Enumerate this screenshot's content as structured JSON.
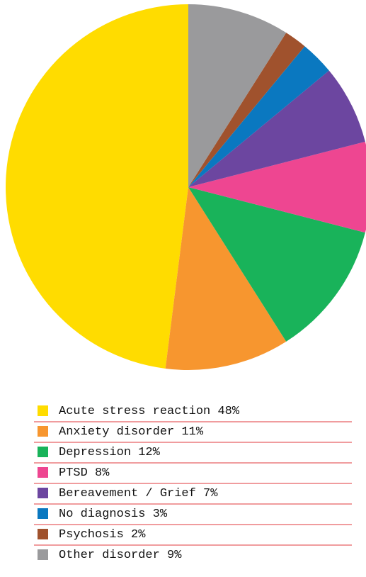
{
  "chart_data": {
    "type": "pie",
    "categories": [
      "Acute stress reaction",
      "Anxiety disorder",
      "Depression",
      "PTSD",
      "Bereavement / Grief",
      "No diagnosis",
      "Psychosis",
      "Other disorder"
    ],
    "values": [
      48,
      11,
      12,
      8,
      7,
      3,
      2,
      9
    ],
    "value_labels": [
      "48%",
      "11%",
      "12%",
      "8%",
      "7%",
      "3%",
      "2%",
      "9%"
    ],
    "colors": [
      "#ffdc00",
      "#f7962f",
      "#19b35a",
      "#ee4691",
      "#6c46a0",
      "#0a78c0",
      "#a0522d",
      "#9a9a9c"
    ],
    "legend": "bottom"
  }
}
